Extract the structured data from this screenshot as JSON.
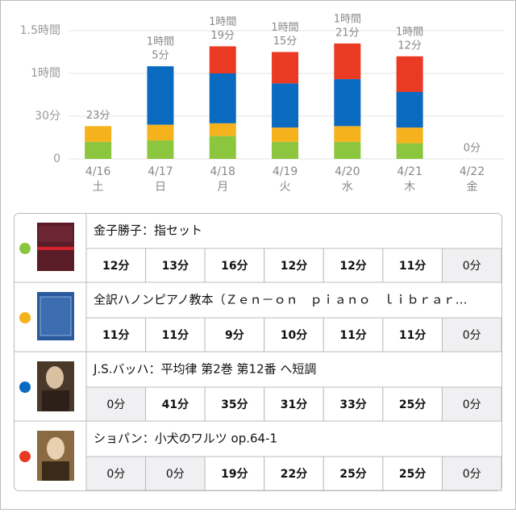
{
  "chart_data": {
    "type": "stacked-bar",
    "categories": [
      "4/16",
      "4/17",
      "4/18",
      "4/19",
      "4/20",
      "4/21",
      "4/22"
    ],
    "weekdays": [
      "土",
      "日",
      "月",
      "火",
      "水",
      "木",
      "金"
    ],
    "ylim": [
      0,
      90
    ],
    "yticks": [
      0,
      {
        "value": 30,
        "label": "30分"
      },
      {
        "value": 60,
        "label": "1時間"
      },
      {
        "value": 90,
        "label": "1.5時間"
      }
    ],
    "grid": true,
    "total_labels": [
      [
        "23分"
      ],
      [
        "1時間",
        "5分"
      ],
      [
        "1時間",
        "19分"
      ],
      [
        "1時間",
        "15分"
      ],
      [
        "1時間",
        "21分"
      ],
      [
        "1時間",
        "12分"
      ],
      [
        "0分"
      ]
    ],
    "series": [
      {
        "name": "金子勝子：指セット",
        "color": "#8cc63f",
        "values": [
          12,
          13,
          16,
          12,
          12,
          11,
          0
        ],
        "value_labels": [
          "12分",
          "13分",
          "16分",
          "12分",
          "12分",
          "11分",
          "0分"
        ]
      },
      {
        "name": "全訳ハノンピアノ教本（Ｚｅｎ－ｏｎ　ｐｉａｎｏ　ｌｉｂｒａｒ…",
        "color": "#f5b21c",
        "values": [
          11,
          11,
          9,
          10,
          11,
          11,
          0
        ],
        "value_labels": [
          "11分",
          "11分",
          "9分",
          "10分",
          "11分",
          "11分",
          "0分"
        ]
      },
      {
        "name": "J.S.バッハ：平均律 第2巻 第12番 ヘ短調",
        "color": "#0a6abf",
        "values": [
          0,
          41,
          35,
          31,
          33,
          25,
          0
        ],
        "value_labels": [
          "0分",
          "41分",
          "35分",
          "31分",
          "33分",
          "25分",
          "0分"
        ]
      },
      {
        "name": "ショパン：小犬のワルツ op.64-1",
        "color": "#ea3a24",
        "values": [
          0,
          0,
          19,
          22,
          25,
          25,
          0
        ],
        "value_labels": [
          "0分",
          "0分",
          "19分",
          "22分",
          "25分",
          "25分",
          "0分"
        ]
      }
    ]
  }
}
